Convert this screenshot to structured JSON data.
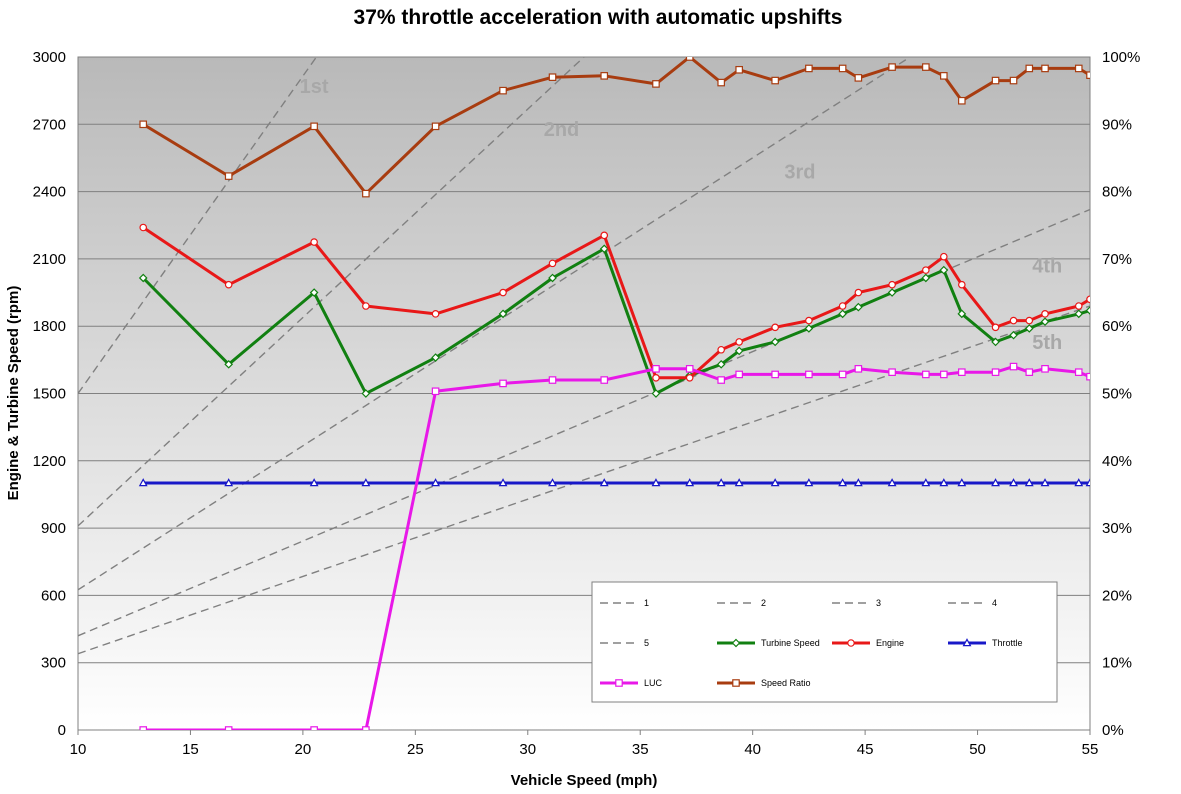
{
  "chart_data": {
    "type": "line",
    "title": "37% throttle acceleration with automatic upshifts",
    "xlabel": "Vehicle Speed (mph)",
    "ylabel": "Engine & Turbine Speed (rpm)",
    "xlim": [
      10,
      55
    ],
    "ylim": [
      0,
      3000
    ],
    "y2lim": [
      0,
      100
    ],
    "x_ticks": [
      "10",
      "15",
      "20",
      "25",
      "30",
      "35",
      "40",
      "45",
      "50",
      "55"
    ],
    "y_ticks": [
      "0",
      "300",
      "600",
      "900",
      "1200",
      "1500",
      "1800",
      "2100",
      "2400",
      "2700",
      "3000"
    ],
    "y2_ticks": [
      "0%",
      "10%",
      "20%",
      "30%",
      "40%",
      "50%",
      "60%",
      "70%",
      "80%",
      "90%",
      "100%"
    ],
    "grid": true,
    "legend_position": "bottom-right",
    "gear_labels": [
      {
        "text": "1st",
        "x": 20.5,
        "y": 2870
      },
      {
        "text": "2nd",
        "x": 31.5,
        "y": 2680
      },
      {
        "text": "3rd",
        "x": 42.1,
        "y": 2490
      },
      {
        "text": "4th",
        "x": 53.1,
        "y": 2070
      },
      {
        "text": "5th",
        "x": 53.1,
        "y": 1730
      }
    ],
    "series": [
      {
        "name": "1",
        "axis": "left",
        "style": "dashed",
        "color": "#808080",
        "marker": "none",
        "x": [
          10,
          20.6
        ],
        "y": [
          1500,
          3000
        ]
      },
      {
        "name": "2",
        "axis": "left",
        "style": "dashed",
        "color": "#808080",
        "marker": "none",
        "x": [
          10,
          32.5
        ],
        "y": [
          910,
          3000
        ]
      },
      {
        "name": "3",
        "axis": "left",
        "style": "dashed",
        "color": "#808080",
        "marker": "none",
        "x": [
          10,
          47
        ],
        "y": [
          625,
          3000
        ]
      },
      {
        "name": "4",
        "axis": "left",
        "style": "dashed",
        "color": "#808080",
        "marker": "none",
        "x": [
          10,
          55
        ],
        "y": [
          420,
          2320
        ]
      },
      {
        "name": "5",
        "axis": "left",
        "style": "dashed",
        "color": "#808080",
        "marker": "none",
        "x": [
          10,
          55
        ],
        "y": [
          340,
          1890
        ]
      },
      {
        "name": "Turbine Speed",
        "axis": "left",
        "style": "solid",
        "color": "#118011",
        "marker": "diamond",
        "x": [
          12.9,
          16.7,
          20.5,
          22.8,
          25.9,
          28.9,
          31.1,
          33.4,
          35.7,
          37.2,
          38.6,
          39.4,
          41.0,
          42.5,
          44.0,
          44.7,
          46.2,
          47.7,
          48.5,
          49.3,
          50.8,
          51.6,
          52.3,
          53.0,
          54.5,
          55.0
        ],
        "y": [
          2015,
          1630,
          1950,
          1500,
          1660,
          1855,
          2015,
          2145,
          1500,
          1580,
          1630,
          1690,
          1730,
          1790,
          1855,
          1885,
          1950,
          2015,
          2050,
          1855,
          1730,
          1760,
          1790,
          1820,
          1855,
          1870
        ]
      },
      {
        "name": "Engine",
        "axis": "left",
        "style": "solid",
        "color": "#e81818",
        "marker": "circle",
        "x": [
          12.9,
          16.7,
          20.5,
          22.8,
          25.9,
          28.9,
          31.1,
          33.4,
          35.7,
          37.2,
          38.6,
          39.4,
          41.0,
          42.5,
          44.0,
          44.7,
          46.2,
          47.7,
          48.5,
          49.3,
          50.8,
          51.6,
          52.3,
          53.0,
          54.5,
          55.0
        ],
        "y": [
          2240,
          1985,
          2175,
          1890,
          1855,
          1950,
          2080,
          2205,
          1570,
          1570,
          1695,
          1730,
          1795,
          1825,
          1890,
          1950,
          1985,
          2050,
          2110,
          1985,
          1795,
          1825,
          1825,
          1855,
          1890,
          1920
        ]
      },
      {
        "name": "Throttle",
        "axis": "right",
        "style": "solid",
        "color": "#1818c8",
        "marker": "triangle",
        "x": [
          12.9,
          16.7,
          20.5,
          22.8,
          25.9,
          28.9,
          31.1,
          33.4,
          35.7,
          37.2,
          38.6,
          39.4,
          41.0,
          42.5,
          44.0,
          44.7,
          46.2,
          47.7,
          48.5,
          49.3,
          50.8,
          51.6,
          52.3,
          53.0,
          54.5,
          55.0
        ],
        "y": [
          36.7,
          36.7,
          36.7,
          36.7,
          36.7,
          36.7,
          36.7,
          36.7,
          36.7,
          36.7,
          36.7,
          36.7,
          36.7,
          36.7,
          36.7,
          36.7,
          36.7,
          36.7,
          36.7,
          36.7,
          36.7,
          36.7,
          36.7,
          36.7,
          36.7,
          36.7
        ]
      },
      {
        "name": "LUC",
        "axis": "left",
        "style": "solid",
        "color": "#e818e8",
        "marker": "square",
        "x": [
          12.9,
          16.7,
          20.5,
          22.8,
          25.9,
          28.9,
          31.1,
          33.4,
          35.7,
          37.2,
          38.6,
          39.4,
          41.0,
          42.5,
          44.0,
          44.7,
          46.2,
          47.7,
          48.5,
          49.3,
          50.8,
          51.6,
          52.3,
          53.0,
          54.5,
          55.0
        ],
        "y": [
          0,
          0,
          0,
          0,
          1510,
          1545,
          1560,
          1560,
          1610,
          1610,
          1560,
          1585,
          1585,
          1585,
          1585,
          1610,
          1595,
          1585,
          1585,
          1595,
          1595,
          1620,
          1595,
          1610,
          1595,
          1575
        ]
      },
      {
        "name": "Speed Ratio",
        "axis": "right",
        "style": "solid",
        "color": "#a83c10",
        "marker": "square",
        "x": [
          12.9,
          16.7,
          20.5,
          22.8,
          25.9,
          28.9,
          31.1,
          33.4,
          35.7,
          37.2,
          38.6,
          39.4,
          41.0,
          42.5,
          44.0,
          44.7,
          46.2,
          47.7,
          48.5,
          49.3,
          50.8,
          51.6,
          52.3,
          53.0,
          54.5,
          55.0
        ],
        "y": [
          90,
          82.3,
          89.7,
          79.7,
          89.7,
          95,
          97,
          97.2,
          96,
          100,
          96.2,
          98.1,
          96.5,
          98.3,
          98.3,
          96.9,
          98.5,
          98.5,
          97.2,
          93.5,
          96.5,
          96.5,
          98.3,
          98.3,
          98.3,
          97.3
        ]
      }
    ]
  }
}
